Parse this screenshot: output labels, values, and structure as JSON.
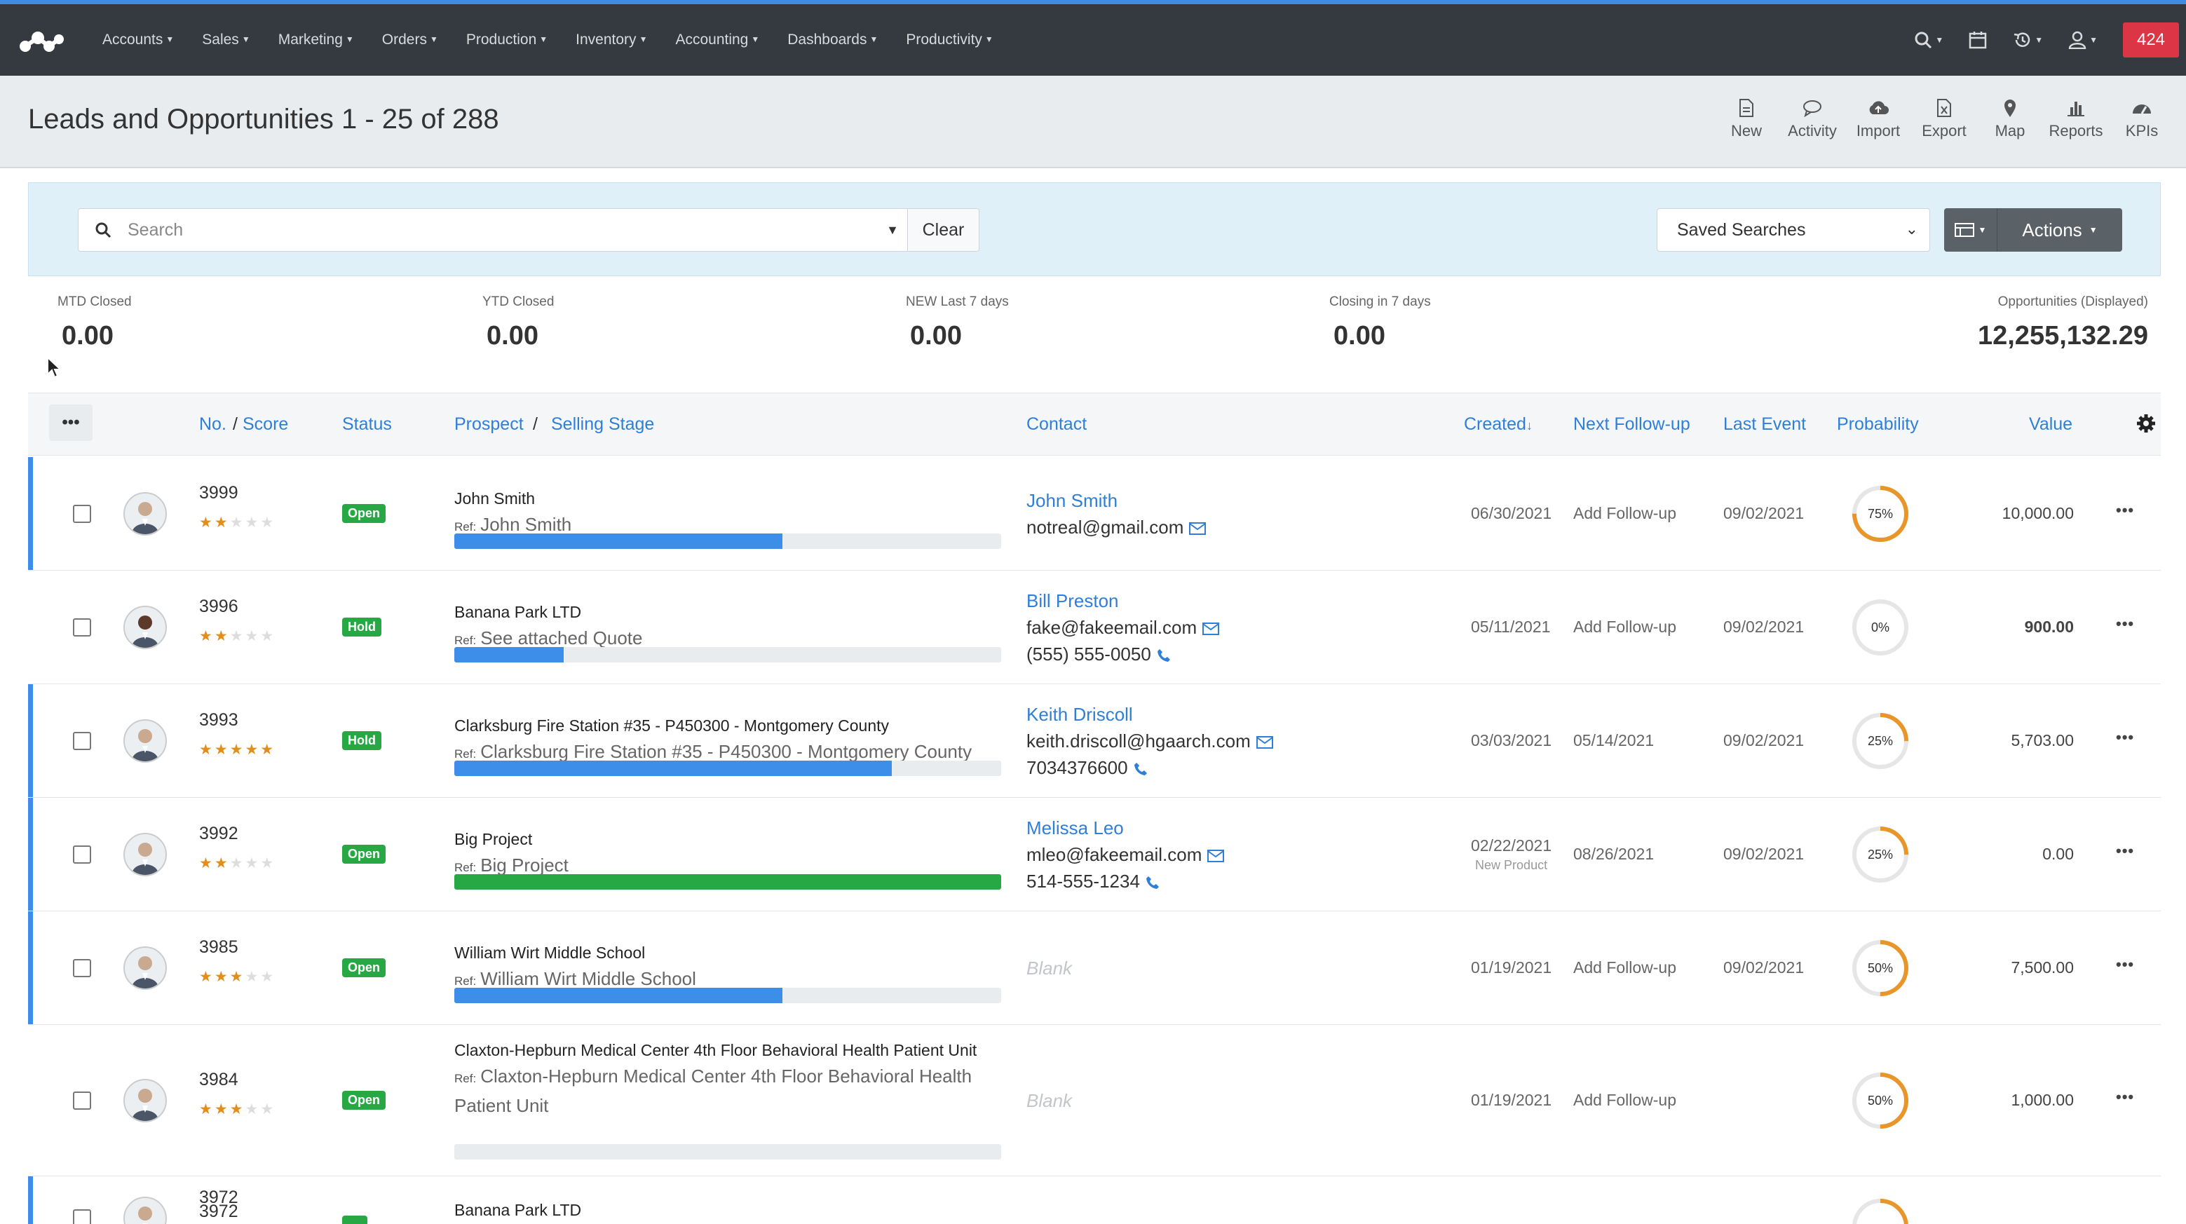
{
  "nav": {
    "items": [
      "Accounts",
      "Sales",
      "Marketing",
      "Orders",
      "Production",
      "Inventory",
      "Accounting",
      "Dashboards",
      "Productivity"
    ],
    "count_badge": "424"
  },
  "page": {
    "title": "Leads and Opportunities 1 - 25 of 288"
  },
  "toolbar": {
    "new": "New",
    "activity": "Activity",
    "import": "Import",
    "export": "Export",
    "map": "Map",
    "reports": "Reports",
    "kpis": "KPIs"
  },
  "search": {
    "placeholder": "Search",
    "value": "",
    "clear": "Clear",
    "saved_searches": "Saved Searches",
    "actions": "Actions"
  },
  "stats": [
    {
      "label": "MTD Closed",
      "value": "0.00"
    },
    {
      "label": "YTD Closed",
      "value": "0.00"
    },
    {
      "label": "NEW Last 7 days",
      "value": "0.00"
    },
    {
      "label": "Closing in 7 days",
      "value": "0.00"
    },
    {
      "label": "Opportunities (Displayed)",
      "value": "12,255,132.29"
    }
  ],
  "table": {
    "headers": {
      "menu": "•••",
      "no": "No.",
      "slash1": "/",
      "score": "Score",
      "status": "Status",
      "prospect": "Prospect",
      "slash2": "/",
      "selling_stage": "Selling Stage",
      "contact": "Contact",
      "created": "Created",
      "next_followup": "Next Follow-up",
      "last_event": "Last Event",
      "probability": "Probability",
      "value": "Value"
    },
    "ref_label": "Ref:",
    "rows": [
      {
        "no": "3999",
        "score": 2,
        "status": "Open",
        "status_color": "#28a745",
        "prospect": "John Smith",
        "ref": "John Smith",
        "stage_progress": 0.6,
        "bar_color": "#3d8ee8",
        "accent": true,
        "contact_name": "John Smith",
        "email": "notreal@gmail.com",
        "phone": "",
        "created": "06/30/2021",
        "created_note": "",
        "next_followup": "Add Follow-up",
        "last_event": "09/02/2021",
        "probability": "75%",
        "prob_value": 0.75,
        "value": "10,000.00",
        "value_bold": false
      },
      {
        "no": "3996",
        "score": 2,
        "status": "Hold",
        "status_color": "#28a745",
        "prospect": "Banana Park LTD",
        "ref": "See attached Quote",
        "stage_progress": 0.2,
        "bar_color": "#3d8ee8",
        "accent": false,
        "contact_name": "Bill Preston",
        "email": "fake@fakeemail.com",
        "phone": "(555) 555-0050",
        "created": "05/11/2021",
        "created_note": "",
        "next_followup": "Add Follow-up",
        "last_event": "09/02/2021",
        "probability": "0%",
        "prob_value": 0,
        "value": "900.00",
        "value_bold": true
      },
      {
        "no": "3993",
        "score": 5,
        "status": "Hold",
        "status_color": "#28a745",
        "prospect": "Clarksburg Fire Station #35 - P450300 - Montgomery County",
        "ref": "Clarksburg Fire Station #35 - P450300 - Montgomery County",
        "stage_progress": 0.8,
        "bar_color": "#3d8ee8",
        "accent": true,
        "contact_name": "Keith Driscoll",
        "email": "keith.driscoll@hgaarch.com",
        "phone": "7034376600",
        "created": "03/03/2021",
        "created_note": "",
        "next_followup": "05/14/2021",
        "last_event": "09/02/2021",
        "probability": "25%",
        "prob_value": 0.25,
        "value": "5,703.00",
        "value_bold": false
      },
      {
        "no": "3992",
        "score": 2,
        "status": "Open",
        "status_color": "#28a745",
        "prospect": "Big Project",
        "ref": "Big Project",
        "stage_progress": 1.0,
        "bar_color": "#28a745",
        "accent": true,
        "contact_name": "Melissa Leo",
        "email": "mleo@fakeemail.com",
        "phone": "514-555-1234",
        "created": "02/22/2021",
        "created_note": "New Product",
        "next_followup": "08/26/2021",
        "last_event": "09/02/2021",
        "probability": "25%",
        "prob_value": 0.25,
        "value": "0.00",
        "value_bold": false
      },
      {
        "no": "3985",
        "score": 3,
        "status": "Open",
        "status_color": "#28a745",
        "prospect": "William Wirt Middle School",
        "ref": "William Wirt Middle School",
        "stage_progress": 0.6,
        "bar_color": "#3d8ee8",
        "accent": true,
        "contact_name": "",
        "email": "",
        "phone": "",
        "blank": "Blank",
        "created": "01/19/2021",
        "created_note": "",
        "next_followup": "Add Follow-up",
        "last_event": "09/02/2021",
        "probability": "50%",
        "prob_value": 0.5,
        "value": "7,500.00",
        "value_bold": false
      },
      {
        "no": "3984",
        "score": 3,
        "status": "Open",
        "status_color": "#28a745",
        "prospect": "Claxton-Hepburn Medical Center 4th Floor Behavioral Health Patient Unit",
        "ref": "Claxton-Hepburn Medical Center 4th Floor Behavioral Health Patient Unit",
        "stage_progress": 0,
        "bar_color": "#3d8ee8",
        "accent": false,
        "contact_name": "",
        "email": "",
        "phone": "",
        "blank": "Blank",
        "created": "01/19/2021",
        "created_note": "",
        "next_followup": "Add Follow-up",
        "last_event": "",
        "probability": "50%",
        "prob_value": 0.5,
        "value": "1,000.00",
        "value_bold": false
      },
      {
        "no": "3972",
        "score": 0,
        "status": "",
        "status_color": "#28a745",
        "prospect": "Banana Park LTD",
        "ref": "",
        "stage_progress": 0,
        "bar_color": "#3d8ee8",
        "accent": true,
        "contact_name": "",
        "email": "",
        "phone": "",
        "created": "",
        "created_note": "",
        "next_followup": "",
        "last_event": "",
        "probability": "",
        "prob_value": 0.5,
        "value": "",
        "value_bold": false
      }
    ]
  },
  "colors": {
    "accent_blue": "#3d8ee8",
    "link_blue": "#2f7fd8",
    "status_green": "#28a745",
    "ring_orange": "#e8962a",
    "badge_red": "#dc3545"
  }
}
